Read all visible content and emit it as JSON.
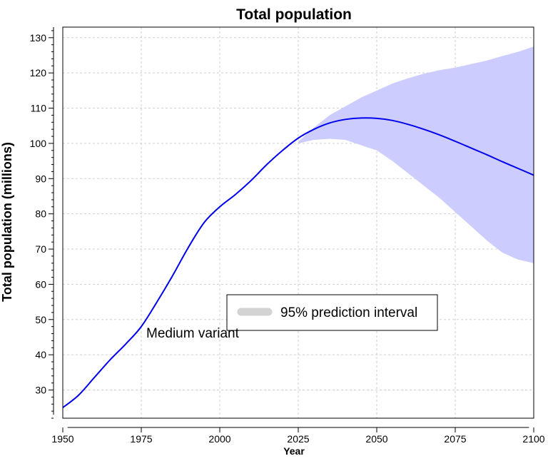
{
  "chart_data": {
    "type": "line",
    "title": "Total population",
    "xlabel": "Year",
    "ylabel": "Total population (millions)",
    "xlim": [
      1950,
      2100
    ],
    "ylim": [
      22,
      133
    ],
    "x_ticks": [
      1950,
      1975,
      2000,
      2025,
      2050,
      2075,
      2100
    ],
    "y_ticks": [
      30,
      40,
      50,
      60,
      70,
      80,
      90,
      100,
      110,
      120,
      130
    ],
    "grid": true,
    "legend": {
      "placement": "center",
      "entries": [
        "95% prediction interval"
      ]
    },
    "annotations": [
      {
        "text": "Medium variant",
        "x": 1975,
        "y": 44
      }
    ],
    "colors": {
      "line": "#0000ee",
      "band": "#ccccff",
      "legend_swatch": "#d3d3d3"
    },
    "series": [
      {
        "type": "line",
        "x": [
          1950,
          1955,
          1960,
          1965,
          1970,
          1975,
          1980,
          1985,
          1990,
          1995,
          2000,
          2005,
          2010,
          2015,
          2020,
          2025,
          2030,
          2035,
          2040,
          2045,
          2050,
          2055,
          2060,
          2065,
          2070,
          2075,
          2080,
          2085,
          2090,
          2095,
          2100
        ],
        "y": [
          25,
          28.5,
          33.5,
          38.5,
          43,
          48,
          55,
          62.5,
          70.5,
          77.5,
          82,
          85.5,
          89.5,
          94,
          98,
          101.5,
          104,
          105.8,
          106.8,
          107.2,
          107.1,
          106.5,
          105.4,
          104,
          102.4,
          100.6,
          98.7,
          96.8,
          94.8,
          92.9,
          91
        ]
      },
      {
        "type": "band",
        "x": [
          2025,
          2030,
          2035,
          2040,
          2045,
          2050,
          2055,
          2060,
          2065,
          2070,
          2075,
          2080,
          2085,
          2090,
          2095,
          2100
        ],
        "lower": [
          100,
          101,
          101.3,
          101,
          99.5,
          98,
          95,
          91.5,
          88,
          84.5,
          80.5,
          76.5,
          72.5,
          69,
          67,
          66
        ],
        "upper": [
          100.5,
          104.5,
          108,
          110.5,
          113,
          115,
          117,
          118.5,
          119.8,
          120.8,
          121.5,
          122.5,
          123.5,
          124.8,
          126,
          127.5
        ]
      }
    ]
  }
}
